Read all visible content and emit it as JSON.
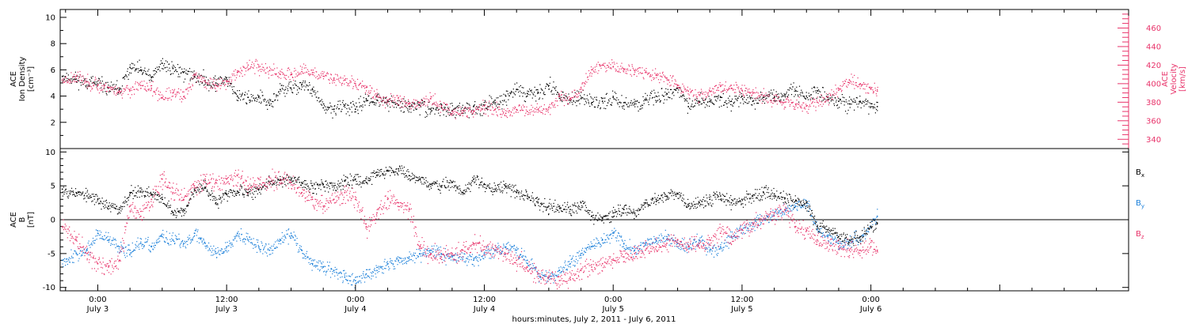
{
  "colors": {
    "black": "#000000",
    "pink": "#e8336a",
    "blue": "#1a7fd9"
  },
  "chart_data": [
    {
      "type": "scatter",
      "panel": "plasma",
      "ylabel_left": [
        "ACE",
        "Ion Density",
        "[cm⁻³]"
      ],
      "ylabel_right": [
        "ACE",
        "Velocity",
        "[km/s]"
      ],
      "left_yticks": [
        2,
        4,
        6,
        8,
        10
      ],
      "left_ylim": [
        0,
        10.6
      ],
      "right_yticks": [
        340,
        360,
        380,
        400,
        420,
        440,
        460
      ],
      "right_ylim": [
        330,
        480
      ],
      "xlim_hours": [
        -3.5,
        96
      ],
      "data_end_hour": 72.6,
      "grid": false,
      "series": [
        {
          "color": "black",
          "x": [
            -3.3,
            -2,
            -1,
            0,
            1,
            2,
            3,
            4,
            5,
            6,
            7,
            8,
            9,
            10,
            11,
            12,
            13,
            14,
            15,
            16,
            17,
            18,
            19,
            20,
            21,
            22,
            23,
            24,
            25,
            26,
            27,
            28,
            29,
            30,
            31,
            32,
            33,
            34,
            35,
            36,
            37,
            38,
            39,
            40,
            41,
            42,
            43,
            44,
            45,
            46,
            47,
            48,
            49,
            50,
            51,
            52,
            53,
            54,
            55,
            56,
            57,
            58,
            59,
            60,
            61,
            62,
            63,
            64,
            65,
            66,
            67,
            68,
            69,
            70,
            71,
            72,
            72.6
          ],
          "y": [
            5.5,
            5.3,
            5.1,
            4.9,
            4.6,
            4.5,
            6.2,
            6.0,
            5.4,
            6.5,
            6.1,
            5.8,
            5.5,
            5.2,
            5.0,
            5.4,
            4.0,
            3.9,
            4.0,
            3.3,
            4.5,
            4.6,
            4.9,
            4.5,
            3.1,
            3.0,
            3.3,
            3.0,
            3.8,
            3.7,
            3.6,
            3.3,
            3.2,
            3.3,
            3.0,
            3.1,
            2.9,
            2.9,
            3.2,
            3.3,
            3.5,
            4.0,
            4.5,
            4.2,
            4.3,
            4.8,
            4.0,
            3.8,
            3.8,
            3.5,
            3.6,
            3.9,
            3.5,
            3.4,
            3.7,
            4.0,
            4.2,
            4.6,
            3.2,
            3.6,
            3.6,
            3.9,
            3.6,
            4.0,
            3.6,
            3.9,
            3.9,
            4.1,
            4.4,
            4.0,
            4.4,
            3.9,
            3.6,
            3.4,
            3.6,
            3.2,
            3.2
          ]
        },
        {
          "color": "pink",
          "x": [
            -3.3,
            -2,
            -1,
            0,
            1,
            2,
            3,
            4,
            5,
            6,
            7,
            8,
            9,
            10,
            11,
            12,
            13,
            14,
            15,
            16,
            17,
            18,
            19,
            20,
            21,
            22,
            23,
            24,
            25,
            26,
            27,
            28,
            29,
            30,
            31,
            32,
            33,
            34,
            35,
            36,
            37,
            38,
            39,
            40,
            41,
            42,
            43,
            44,
            45,
            46,
            47,
            48,
            49,
            50,
            51,
            52,
            53,
            54,
            55,
            56,
            57,
            58,
            59,
            60,
            61,
            62,
            63,
            64,
            65,
            66,
            67,
            68,
            69,
            70,
            71,
            72,
            72.6
          ],
          "y": [
            404,
            408,
            402,
            398,
            396,
            392,
            393,
            398,
            395,
            385,
            390,
            386,
            410,
            402,
            398,
            402,
            412,
            420,
            418,
            414,
            410,
            410,
            413,
            412,
            408,
            406,
            404,
            400,
            396,
            386,
            380,
            385,
            378,
            380,
            384,
            376,
            370,
            371,
            370,
            376,
            372,
            368,
            372,
            370,
            372,
            374,
            386,
            384,
            396,
            415,
            420,
            418,
            416,
            414,
            412,
            409,
            406,
            398,
            392,
            388,
            392,
            397,
            395,
            393,
            390,
            387,
            384,
            380,
            378,
            376,
            380,
            386,
            393,
            404,
            400,
            394,
            392
          ]
        }
      ]
    },
    {
      "type": "scatter",
      "panel": "magnetic field",
      "ylabel_left": [
        "ACE",
        "B",
        "[nT]"
      ],
      "left_yticks": [
        -10,
        -5,
        0,
        5,
        10
      ],
      "left_ylim": [
        -10.5,
        10.5
      ],
      "xlim_hours": [
        -3.5,
        96
      ],
      "data_end_hour": 72.6,
      "grid": false,
      "zero_line": true,
      "legend_position": "right",
      "series": [
        {
          "name": "Bx",
          "color": "black",
          "x": [
            -3.3,
            -2,
            -1,
            0,
            1,
            2,
            3,
            4,
            5,
            6,
            7,
            8,
            9,
            10,
            11,
            12,
            13,
            14,
            15,
            16,
            17,
            18,
            19,
            20,
            21,
            22,
            23,
            24,
            25,
            26,
            27,
            28,
            29,
            30,
            31,
            32,
            33,
            34,
            35,
            36,
            37,
            38,
            39,
            40,
            41,
            42,
            43,
            44,
            45,
            46,
            47,
            48,
            49,
            50,
            51,
            52,
            53,
            54,
            55,
            56,
            57,
            58,
            59,
            60,
            61,
            62,
            63,
            64,
            65,
            66,
            67,
            68,
            69,
            70,
            71,
            72,
            72.6
          ],
          "y": [
            4.5,
            4.0,
            3.5,
            3.0,
            2.0,
            1.5,
            4.0,
            4.2,
            3.8,
            3.0,
            1.0,
            1.5,
            4.5,
            4.8,
            2.5,
            3.8,
            4.2,
            4.0,
            4.5,
            5.5,
            5.8,
            6.0,
            5.5,
            5.0,
            5.2,
            5.0,
            5.8,
            6.0,
            5.5,
            7.0,
            7.2,
            7.5,
            6.5,
            6.0,
            5.2,
            5.0,
            5.5,
            4.0,
            6.0,
            5.2,
            4.5,
            4.8,
            4.0,
            3.5,
            2.5,
            2.0,
            2.0,
            1.5,
            2.5,
            0.5,
            0.2,
            1.0,
            1.5,
            1.0,
            2.5,
            3.0,
            3.5,
            3.8,
            2.0,
            2.5,
            3.0,
            3.5,
            2.5,
            3.0,
            3.5,
            4.0,
            3.8,
            3.2,
            2.8,
            2.5,
            -1.0,
            -1.5,
            -2.5,
            -3.0,
            -2.5,
            -1.0,
            -0.5
          ]
        },
        {
          "name": "By",
          "color": "blue",
          "x": [
            -3.3,
            -2,
            -1,
            0,
            1,
            2,
            3,
            4,
            5,
            6,
            7,
            8,
            9,
            10,
            11,
            12,
            13,
            14,
            15,
            16,
            17,
            18,
            19,
            20,
            21,
            22,
            23,
            24,
            25,
            26,
            27,
            28,
            29,
            30,
            31,
            32,
            33,
            34,
            35,
            36,
            37,
            38,
            39,
            40,
            41,
            42,
            43,
            44,
            45,
            46,
            47,
            48,
            49,
            50,
            51,
            52,
            53,
            54,
            55,
            56,
            57,
            58,
            59,
            60,
            61,
            62,
            63,
            64,
            65,
            66,
            67,
            68,
            69,
            70,
            71,
            72,
            72.6
          ],
          "y": [
            -6.0,
            -5.0,
            -4.5,
            -2.0,
            -3.0,
            -4.0,
            -4.5,
            -3.5,
            -4.0,
            -2.5,
            -3.0,
            -3.5,
            -2.0,
            -3.5,
            -5.0,
            -4.0,
            -2.0,
            -3.0,
            -4.0,
            -4.5,
            -3.0,
            -2.0,
            -4.5,
            -6.5,
            -7.0,
            -7.5,
            -8.5,
            -9.0,
            -8.0,
            -7.5,
            -6.5,
            -6.0,
            -5.5,
            -5.0,
            -4.5,
            -5.0,
            -5.5,
            -5.5,
            -6.0,
            -5.0,
            -4.5,
            -4.0,
            -4.5,
            -6.0,
            -8.0,
            -8.5,
            -7.5,
            -6.5,
            -5.0,
            -4.0,
            -3.0,
            -2.0,
            -3.5,
            -4.5,
            -3.5,
            -3.0,
            -2.5,
            -3.5,
            -4.0,
            -3.0,
            -4.5,
            -4.0,
            -2.5,
            -1.5,
            -0.5,
            0.0,
            1.0,
            1.5,
            2.0,
            2.5,
            -1.5,
            -2.5,
            -3.5,
            -3.0,
            -2.5,
            -1.0,
            0.5
          ]
        },
        {
          "name": "Bz",
          "color": "pink",
          "x": [
            -3.3,
            -2,
            -1,
            0,
            1,
            2,
            3,
            4,
            5,
            6,
            7,
            8,
            9,
            10,
            11,
            12,
            13,
            14,
            15,
            16,
            17,
            18,
            19,
            20,
            21,
            22,
            23,
            24,
            25,
            26,
            27,
            28,
            29,
            30,
            31,
            32,
            33,
            34,
            35,
            36,
            37,
            38,
            39,
            40,
            41,
            42,
            43,
            44,
            45,
            46,
            47,
            48,
            49,
            50,
            51,
            52,
            53,
            54,
            55,
            56,
            57,
            58,
            59,
            60,
            61,
            62,
            63,
            64,
            65,
            66,
            67,
            68,
            69,
            70,
            71,
            72,
            72.6
          ],
          "y": [
            -1.0,
            -3.0,
            -5.0,
            -6.5,
            -7.0,
            -6.0,
            2.0,
            0.5,
            3.0,
            6.0,
            4.0,
            3.0,
            5.0,
            6.0,
            5.5,
            6.0,
            6.5,
            5.0,
            5.0,
            5.5,
            6.0,
            5.5,
            4.0,
            3.0,
            2.0,
            3.0,
            4.0,
            3.0,
            -1.0,
            1.0,
            3.0,
            2.5,
            1.5,
            -4.0,
            -5.0,
            -5.5,
            -5.0,
            -4.5,
            -3.5,
            -4.0,
            -4.5,
            -5.0,
            -6.0,
            -7.0,
            -8.0,
            -8.5,
            -9.0,
            -8.5,
            -7.5,
            -7.0,
            -6.5,
            -6.0,
            -5.5,
            -5.0,
            -4.5,
            -4.0,
            -3.5,
            -3.0,
            -4.0,
            -3.5,
            -3.0,
            -2.0,
            -2.5,
            -1.5,
            -0.5,
            0.0,
            1.0,
            1.5,
            -1.0,
            -1.5,
            -3.0,
            -3.5,
            -4.0,
            -4.5,
            -4.5,
            -4.0,
            -4.5
          ]
        }
      ],
      "legend": [
        "B",
        "B",
        "B"
      ],
      "legend_subscripts": [
        "x",
        "y",
        "z"
      ]
    }
  ],
  "x_axis": {
    "ticks": [
      {
        "hour": 0,
        "time": "0:00",
        "date": "July 3"
      },
      {
        "hour": 12,
        "time": "12:00",
        "date": "July 3"
      },
      {
        "hour": 24,
        "time": "0:00",
        "date": "July 4"
      },
      {
        "hour": 36,
        "time": "12:00",
        "date": "July 4"
      },
      {
        "hour": 48,
        "time": "0:00",
        "date": "July 5"
      },
      {
        "hour": 60,
        "time": "12:00",
        "date": "July 5"
      },
      {
        "hour": 72,
        "time": "0:00",
        "date": "July 6"
      }
    ],
    "caption": "hours:minutes, July  2, 2011 - July  6, 2011"
  }
}
